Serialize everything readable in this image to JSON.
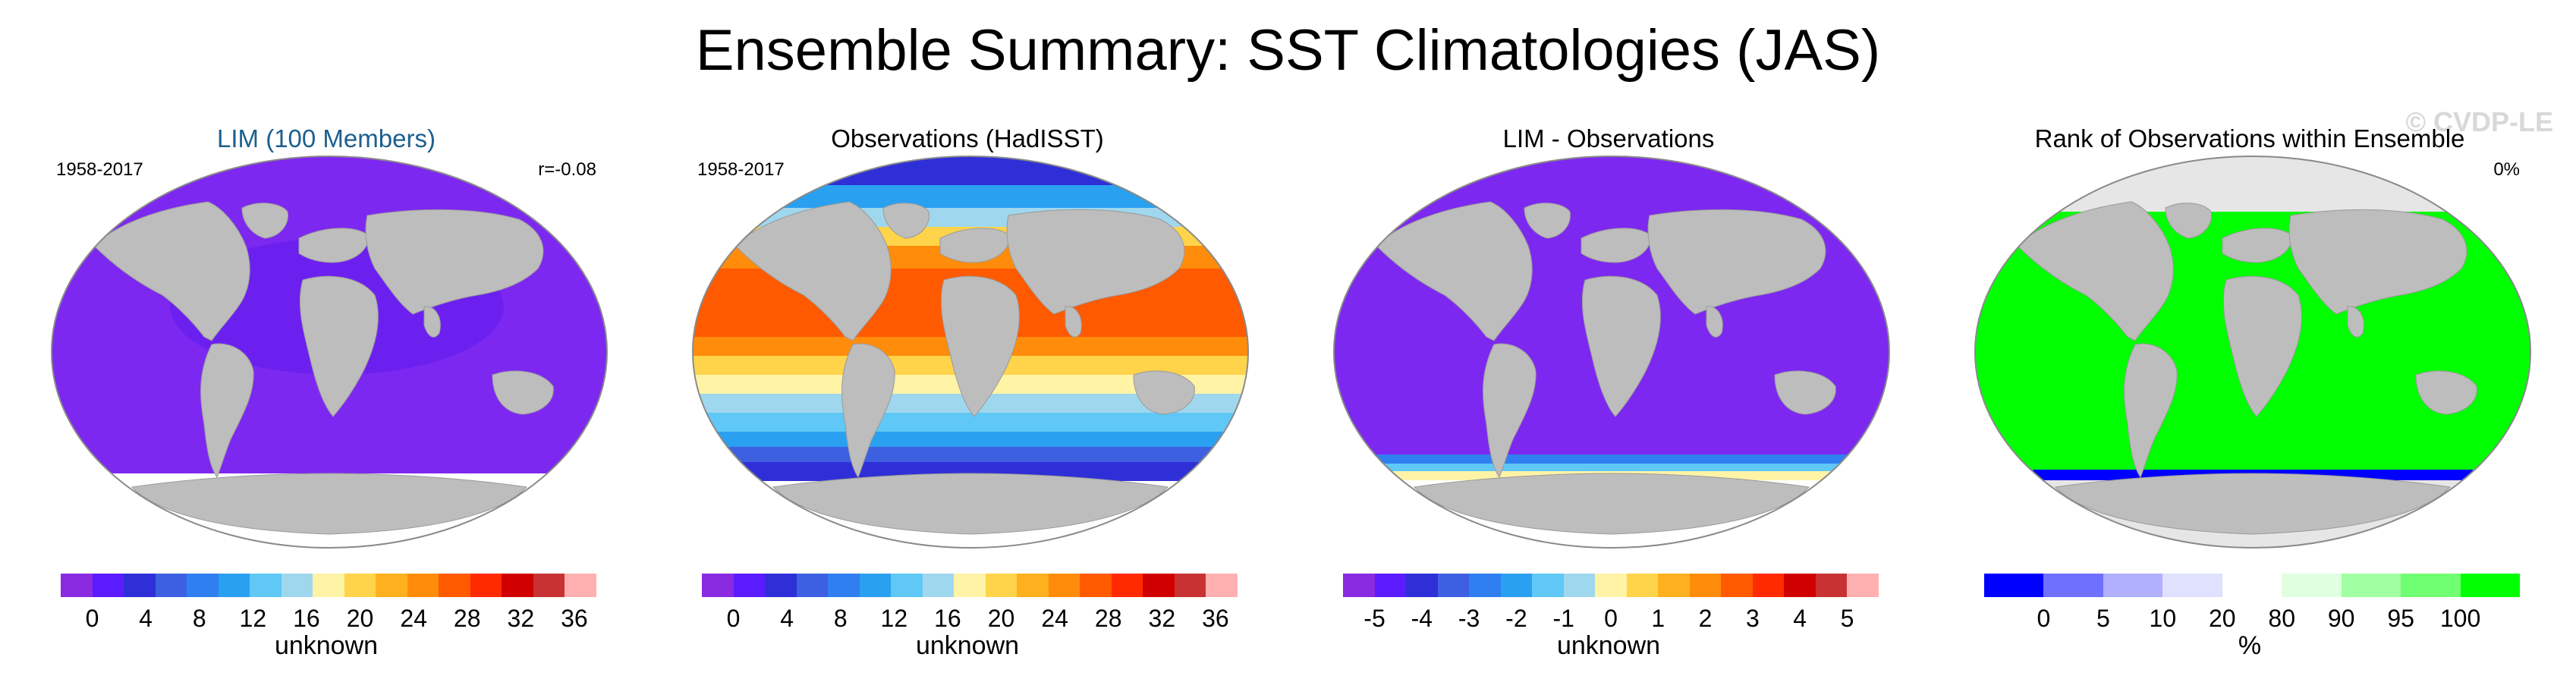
{
  "title": "Ensemble Summary: SST Climatologies (JAS)",
  "watermark": "© CVDP-LE",
  "colors": {
    "land": "#bdbdbd",
    "ocean_bg": "#e6e6e6",
    "border": "#8a8a8a",
    "sst_scale": [
      "#8a2be2",
      "#5b1bff",
      "#2f2fd8",
      "#3d60e0",
      "#2f7ff0",
      "#2aa0f0",
      "#5fc8f6",
      "#9fd7ee",
      "#fff3a6",
      "#ffd44a",
      "#ffb01e",
      "#ff8c0a",
      "#ff5a00",
      "#ff2a00",
      "#d00000",
      "#c83232",
      "#ffb0b0"
    ],
    "rank_scale": [
      "#0000ff",
      "#7070ff",
      "#b0b0ff",
      "#e0e0ff",
      "#ffffff",
      "#e0ffe0",
      "#a0ffa0",
      "#70ff70",
      "#00ff00"
    ]
  },
  "panels": [
    {
      "title": "LIM (100 Members)",
      "title_color": "#1c5f8f",
      "left_label": "1958-2017",
      "right_label": "r=-0.08",
      "fill": "violet",
      "colorbar": {
        "ticks": [
          "0",
          "4",
          "8",
          "12",
          "16",
          "20",
          "24",
          "28",
          "32",
          "36"
        ],
        "label": "unknown",
        "scale": "sst_scale"
      }
    },
    {
      "title": "Observations (HadISST)",
      "title_color": "#000000",
      "left_label": "1958-2017",
      "right_label": "",
      "fill": "sst",
      "colorbar": {
        "ticks": [
          "0",
          "4",
          "8",
          "12",
          "16",
          "20",
          "24",
          "28",
          "32",
          "36"
        ],
        "label": "unknown",
        "scale": "sst_scale"
      }
    },
    {
      "title": "LIM - Observations",
      "title_color": "#000000",
      "left_label": "",
      "right_label": "",
      "fill": "diff",
      "colorbar": {
        "ticks": [
          "-5",
          "-4",
          "-3",
          "-2",
          "-1",
          "0",
          "1",
          "2",
          "3",
          "4",
          "5"
        ],
        "label": "unknown",
        "scale": "sst_scale"
      }
    },
    {
      "title": "Rank of Observations within Ensemble",
      "title_color": "#000000",
      "left_label": "",
      "right_label": "0%",
      "fill": "rank",
      "colorbar": {
        "ticks": [
          "0",
          "5",
          "10",
          "20",
          "80",
          "90",
          "95",
          "100"
        ],
        "label": "%",
        "scale": "rank_scale"
      }
    }
  ],
  "chart_data": [
    {
      "type": "heatmap",
      "title": "LIM (100 Members)",
      "period": "1958-2017",
      "stat": "r=-0.08",
      "colorbar_ticks": [
        0,
        4,
        8,
        12,
        16,
        20,
        24,
        28,
        32,
        36
      ],
      "colorbar_label": "unknown"
    },
    {
      "type": "heatmap",
      "title": "Observations (HadISST)",
      "period": "1958-2017",
      "colorbar_ticks": [
        0,
        4,
        8,
        12,
        16,
        20,
        24,
        28,
        32,
        36
      ],
      "colorbar_label": "unknown"
    },
    {
      "type": "heatmap",
      "title": "LIM - Observations",
      "colorbar_ticks": [
        -5,
        -4,
        -3,
        -2,
        -1,
        0,
        1,
        2,
        3,
        4,
        5
      ],
      "colorbar_label": "unknown"
    },
    {
      "type": "heatmap",
      "title": "Rank of Observations within Ensemble",
      "stat": "0%",
      "colorbar_ticks": [
        0,
        5,
        10,
        20,
        80,
        90,
        95,
        100
      ],
      "colorbar_label": "%"
    }
  ]
}
